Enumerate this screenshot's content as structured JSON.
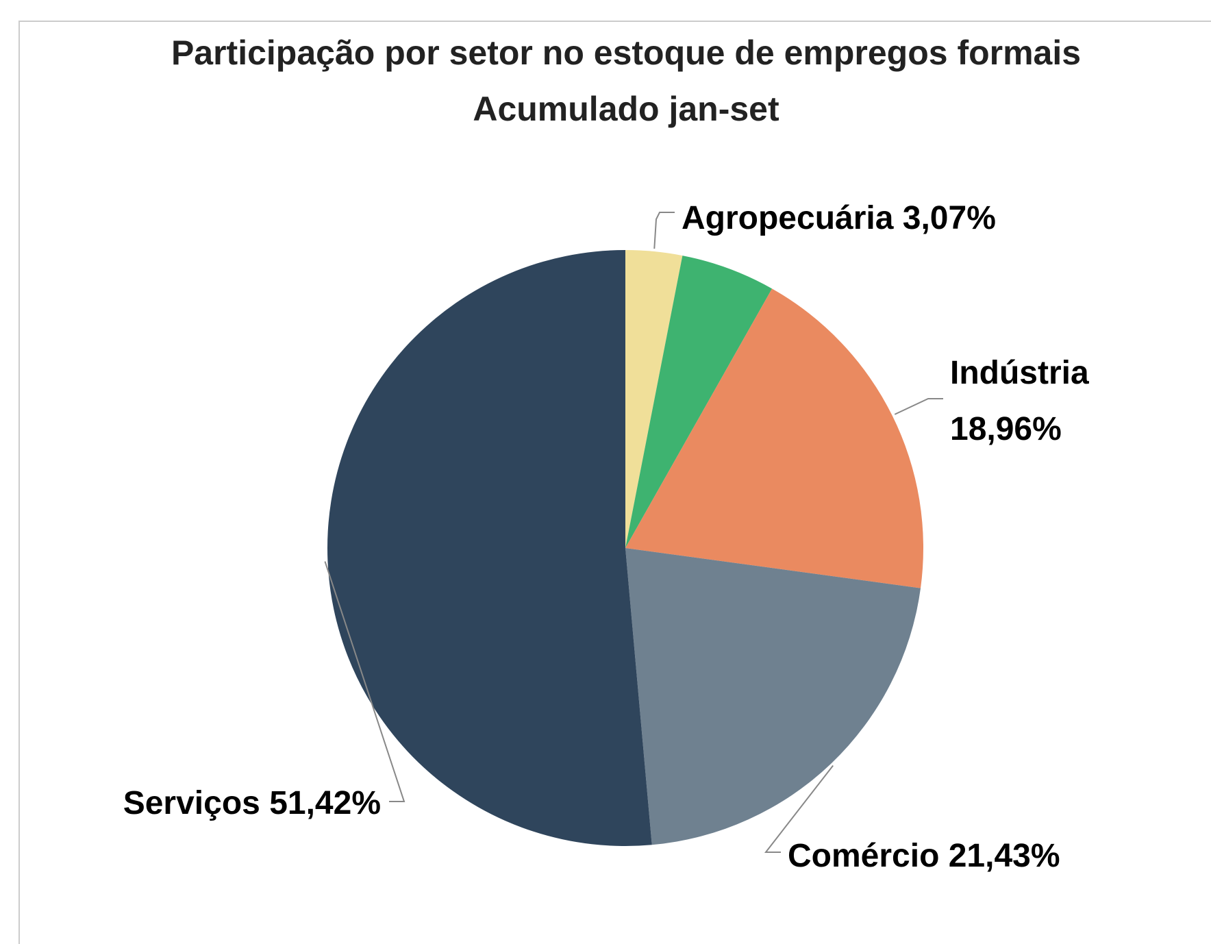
{
  "chart_data": {
    "type": "pie",
    "title": "Participação por setor no estoque de empregos formais",
    "subtitle": "Acumulado jan-set",
    "categories": [
      "Agropecuária",
      null,
      "Indústria",
      "Comércio",
      "Serviços"
    ],
    "values": [
      3.07,
      5.12,
      18.96,
      21.43,
      51.42
    ],
    "value_labels": [
      "3,07%",
      null,
      "18,96%",
      "21,43%",
      "51,42%"
    ],
    "colors": [
      "#f0df99",
      "#3eb370",
      "#ea8a60",
      "#6f8190",
      "#2f455c"
    ]
  }
}
